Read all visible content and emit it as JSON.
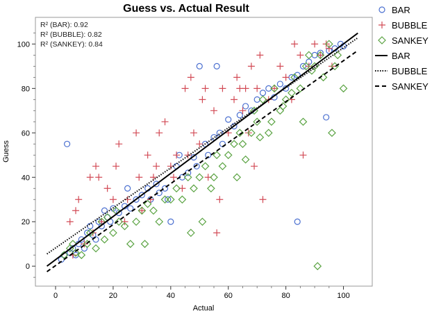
{
  "chart_data": {
    "type": "scatter",
    "title": "Guess vs. Actual Result",
    "xlabel": "Actual",
    "ylabel": "Guess",
    "xlim": [
      -7,
      110
    ],
    "ylim": [
      -9,
      112
    ],
    "xticks": [
      0,
      20,
      40,
      60,
      80,
      100
    ],
    "yticks": [
      0,
      20,
      40,
      60,
      80,
      100
    ],
    "grid": false,
    "legend_position": "outside-right",
    "stats": [
      "R² (BAR): 0.92",
      "R² (BUBBLE): 0.82",
      "R² (SANKEY): 0.84"
    ],
    "series": [
      {
        "name": "BAR",
        "marker": "circle",
        "color": "#4a6fd0",
        "points": [
          [
            2,
            3
          ],
          [
            3,
            5
          ],
          [
            4,
            55
          ],
          [
            5,
            6
          ],
          [
            6,
            8
          ],
          [
            7,
            5
          ],
          [
            8,
            10
          ],
          [
            9,
            12
          ],
          [
            10,
            8
          ],
          [
            11,
            15
          ],
          [
            12,
            18
          ],
          [
            13,
            14
          ],
          [
            14,
            12
          ],
          [
            15,
            20
          ],
          [
            16,
            18
          ],
          [
            17,
            25
          ],
          [
            18,
            22
          ],
          [
            19,
            20
          ],
          [
            20,
            26
          ],
          [
            22,
            24
          ],
          [
            24,
            27
          ],
          [
            25,
            35
          ],
          [
            26,
            26
          ],
          [
            28,
            30
          ],
          [
            30,
            32
          ],
          [
            32,
            35
          ],
          [
            33,
            30
          ],
          [
            35,
            37
          ],
          [
            36,
            33
          ],
          [
            38,
            35
          ],
          [
            39,
            30
          ],
          [
            40,
            20
          ],
          [
            42,
            45
          ],
          [
            43,
            50
          ],
          [
            44,
            40
          ],
          [
            46,
            42
          ],
          [
            48,
            49
          ],
          [
            49,
            45
          ],
          [
            50,
            90
          ],
          [
            52,
            55
          ],
          [
            53,
            50
          ],
          [
            55,
            58
          ],
          [
            56,
            90
          ],
          [
            57,
            60
          ],
          [
            58,
            55
          ],
          [
            60,
            66
          ],
          [
            62,
            63
          ],
          [
            64,
            68
          ],
          [
            66,
            72
          ],
          [
            68,
            70
          ],
          [
            70,
            75
          ],
          [
            72,
            78
          ],
          [
            74,
            80
          ],
          [
            76,
            76
          ],
          [
            78,
            82
          ],
          [
            80,
            80
          ],
          [
            82,
            85
          ],
          [
            84,
            86
          ],
          [
            84,
            20
          ],
          [
            86,
            90
          ],
          [
            88,
            92
          ],
          [
            90,
            95
          ],
          [
            92,
            96
          ],
          [
            94,
            67
          ],
          [
            95,
            97
          ],
          [
            97,
            98
          ],
          [
            99,
            100
          ],
          [
            100,
            99
          ]
        ]
      },
      {
        "name": "BUBBLE",
        "marker": "plus",
        "color": "#d24a55",
        "points": [
          [
            5,
            20
          ],
          [
            6,
            5
          ],
          [
            7,
            25
          ],
          [
            8,
            30
          ],
          [
            10,
            10
          ],
          [
            12,
            40
          ],
          [
            13,
            15
          ],
          [
            14,
            45
          ],
          [
            15,
            40
          ],
          [
            16,
            20
          ],
          [
            18,
            35
          ],
          [
            20,
            30
          ],
          [
            21,
            45
          ],
          [
            22,
            55
          ],
          [
            24,
            20
          ],
          [
            25,
            30
          ],
          [
            28,
            60
          ],
          [
            29,
            40
          ],
          [
            30,
            25
          ],
          [
            32,
            50
          ],
          [
            33,
            30
          ],
          [
            34,
            40
          ],
          [
            35,
            45
          ],
          [
            36,
            60
          ],
          [
            38,
            65
          ],
          [
            40,
            45
          ],
          [
            41,
            40
          ],
          [
            42,
            50
          ],
          [
            44,
            35
          ],
          [
            45,
            80
          ],
          [
            46,
            50
          ],
          [
            47,
            85
          ],
          [
            48,
            60
          ],
          [
            50,
            55
          ],
          [
            51,
            75
          ],
          [
            52,
            80
          ],
          [
            53,
            40
          ],
          [
            55,
            70
          ],
          [
            56,
            15
          ],
          [
            57,
            30
          ],
          [
            58,
            80
          ],
          [
            60,
            60
          ],
          [
            62,
            75
          ],
          [
            63,
            85
          ],
          [
            64,
            80
          ],
          [
            65,
            70
          ],
          [
            66,
            80
          ],
          [
            67,
            60
          ],
          [
            68,
            90
          ],
          [
            69,
            45
          ],
          [
            70,
            80
          ],
          [
            71,
            95
          ],
          [
            72,
            30
          ],
          [
            74,
            75
          ],
          [
            76,
            80
          ],
          [
            78,
            90
          ],
          [
            80,
            85
          ],
          [
            82,
            75
          ],
          [
            83,
            100
          ],
          [
            85,
            95
          ],
          [
            86,
            50
          ],
          [
            88,
            90
          ],
          [
            90,
            100
          ],
          [
            92,
            95
          ],
          [
            94,
            100
          ],
          [
            95,
            98
          ],
          [
            96,
            90
          ]
        ]
      },
      {
        "name": "SANKEY",
        "marker": "diamond",
        "color": "#5aa342",
        "points": [
          [
            3,
            5
          ],
          [
            5,
            8
          ],
          [
            6,
            10
          ],
          [
            7,
            6
          ],
          [
            9,
            5
          ],
          [
            11,
            10
          ],
          [
            12,
            15
          ],
          [
            14,
            8
          ],
          [
            16,
            20
          ],
          [
            17,
            12
          ],
          [
            18,
            22
          ],
          [
            20,
            15
          ],
          [
            21,
            25
          ],
          [
            22,
            20
          ],
          [
            24,
            18
          ],
          [
            26,
            10
          ],
          [
            28,
            20
          ],
          [
            30,
            25
          ],
          [
            31,
            10
          ],
          [
            32,
            28
          ],
          [
            34,
            25
          ],
          [
            36,
            20
          ],
          [
            38,
            30
          ],
          [
            40,
            30
          ],
          [
            42,
            35
          ],
          [
            44,
            30
          ],
          [
            46,
            40
          ],
          [
            47,
            15
          ],
          [
            48,
            35
          ],
          [
            50,
            40
          ],
          [
            51,
            20
          ],
          [
            52,
            45
          ],
          [
            54,
            35
          ],
          [
            55,
            40
          ],
          [
            56,
            50
          ],
          [
            58,
            45
          ],
          [
            60,
            50
          ],
          [
            62,
            55
          ],
          [
            63,
            40
          ],
          [
            64,
            60
          ],
          [
            65,
            55
          ],
          [
            66,
            48
          ],
          [
            68,
            60
          ],
          [
            69,
            70
          ],
          [
            70,
            65
          ],
          [
            71,
            58
          ],
          [
            72,
            75
          ],
          [
            74,
            60
          ],
          [
            75,
            65
          ],
          [
            76,
            80
          ],
          [
            78,
            70
          ],
          [
            79,
            72
          ],
          [
            80,
            75
          ],
          [
            82,
            78
          ],
          [
            83,
            85
          ],
          [
            85,
            80
          ],
          [
            86,
            65
          ],
          [
            87,
            90
          ],
          [
            88,
            95
          ],
          [
            89,
            88
          ],
          [
            90,
            90
          ],
          [
            91,
            0
          ],
          [
            92,
            95
          ],
          [
            93,
            85
          ],
          [
            95,
            100
          ],
          [
            96,
            60
          ],
          [
            97,
            90
          ],
          [
            98,
            95
          ],
          [
            100,
            80
          ]
        ]
      }
    ],
    "fits": [
      {
        "name": "BAR",
        "style": "solid",
        "x": [
          -3,
          105
        ],
        "y": [
          0,
          104.9
        ]
      },
      {
        "name": "BUBBLE",
        "style": "dotted",
        "x": [
          -3,
          105
        ],
        "y": [
          5.5,
          102.8
        ]
      },
      {
        "name": "SANKEY",
        "style": "dashed",
        "x": [
          -3,
          105
        ],
        "y": [
          -2.5,
          97.1
        ]
      }
    ]
  }
}
